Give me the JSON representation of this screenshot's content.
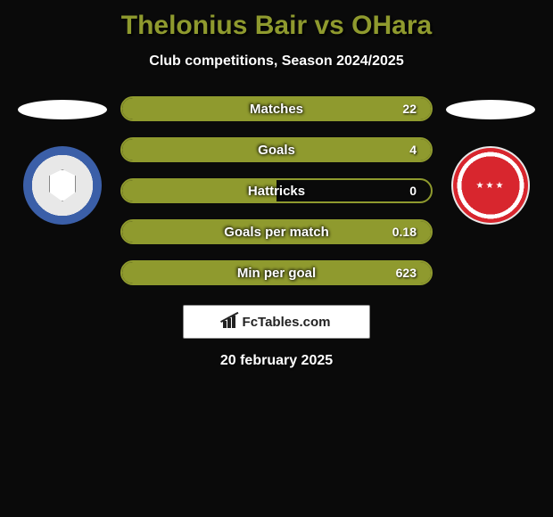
{
  "title": "Thelonius Bair vs OHara",
  "subtitle": "Club competitions, Season 2024/2025",
  "stats": [
    {
      "label": "Matches",
      "value": "22",
      "fill_pct": 100
    },
    {
      "label": "Goals",
      "value": "4",
      "fill_pct": 100
    },
    {
      "label": "Hattricks",
      "value": "0",
      "fill_pct": 50
    },
    {
      "label": "Goals per match",
      "value": "0.18",
      "fill_pct": 100
    },
    {
      "label": "Min per goal",
      "value": "623",
      "fill_pct": 100
    }
  ],
  "brand": "FcTables.com",
  "date": "20 february 2025",
  "colors": {
    "accent": "#8f9a2e",
    "background": "#0a0a0a",
    "white": "#ffffff"
  }
}
